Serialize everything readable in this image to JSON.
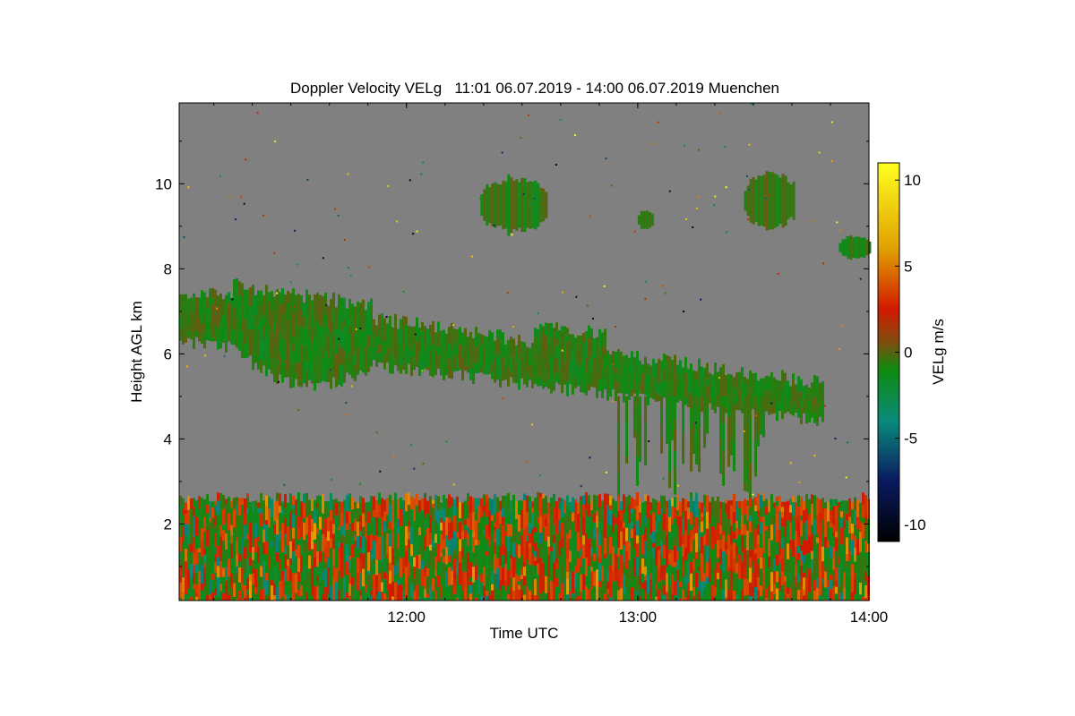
{
  "chart_data": {
    "type": "heatmap",
    "title": "Doppler Velocity VELg   11:01 06.07.2019 - 14:00 06.07.2019 Muenchen",
    "xlabel": "Time UTC",
    "ylabel": "Height AGL km",
    "colorbar_label": "VELg m/s",
    "x_range_hours": [
      11.017,
      14.0
    ],
    "y_range_km": [
      0.2,
      11.9
    ],
    "x_ticks": [
      {
        "value": 12.0,
        "label": "12:00"
      },
      {
        "value": 13.0,
        "label": "13:00"
      },
      {
        "value": 14.0,
        "label": "14:00"
      }
    ],
    "y_ticks": [
      {
        "value": 2,
        "label": "2"
      },
      {
        "value": 4,
        "label": "4"
      },
      {
        "value": 6,
        "label": "6"
      },
      {
        "value": 8,
        "label": "8"
      },
      {
        "value": 10,
        "label": "10"
      }
    ],
    "colorbar_range": [
      -11,
      11
    ],
    "colorbar_ticks": [
      {
        "value": 10,
        "label": "10"
      },
      {
        "value": 5,
        "label": "5"
      },
      {
        "value": 0,
        "label": "0"
      },
      {
        "value": -5,
        "label": "-5"
      },
      {
        "value": -10,
        "label": "-10"
      }
    ],
    "colorscale": [
      {
        "v": -11,
        "color": "#000000"
      },
      {
        "v": -7.5,
        "color": "#0a1a60"
      },
      {
        "v": -4,
        "color": "#0a8a7a"
      },
      {
        "v": -1,
        "color": "#108a10"
      },
      {
        "v": 0.5,
        "color": "#7a5010"
      },
      {
        "v": 2.5,
        "color": "#d21a00"
      },
      {
        "v": 6,
        "color": "#e0a000"
      },
      {
        "v": 11,
        "color": "#ffff20"
      }
    ],
    "no_signal_color": "#808080",
    "regions": [
      {
        "kind": "boundary_layer",
        "t_start": 11.02,
        "t_end": 14.0,
        "base_km": 0.2,
        "top_km": 2.6,
        "typical_velocity": "-2 to 3"
      },
      {
        "kind": "cloud_layer",
        "t_start": 11.02,
        "t_end": 13.8,
        "base_km_start": 6.3,
        "top_km_start": 7.5,
        "base_km_end": 4.4,
        "top_km_end": 5.3,
        "typical_velocity": "-1 to 0"
      },
      {
        "kind": "fall_streaks",
        "t_start": 12.9,
        "t_end": 13.55,
        "base_km": 2.6,
        "top_km": 5.0,
        "typical_velocity": "-1 to 0"
      },
      {
        "kind": "cirrus_patch",
        "t_start": 12.32,
        "t_end": 12.6,
        "base_km": 8.8,
        "top_km": 10.2,
        "typical_velocity": "-1"
      },
      {
        "kind": "cirrus_patch",
        "t_start": 13.46,
        "t_end": 13.68,
        "base_km": 8.9,
        "top_km": 10.3,
        "typical_velocity": "-1"
      },
      {
        "kind": "cirrus_patch",
        "t_start": 13.87,
        "t_end": 14.0,
        "base_km": 8.2,
        "top_km": 8.8,
        "typical_velocity": "-0.5"
      },
      {
        "kind": "cirrus_patch",
        "t_start": 13.0,
        "t_end": 13.06,
        "base_km": 8.9,
        "top_km": 9.4,
        "typical_velocity": "-1"
      }
    ]
  }
}
